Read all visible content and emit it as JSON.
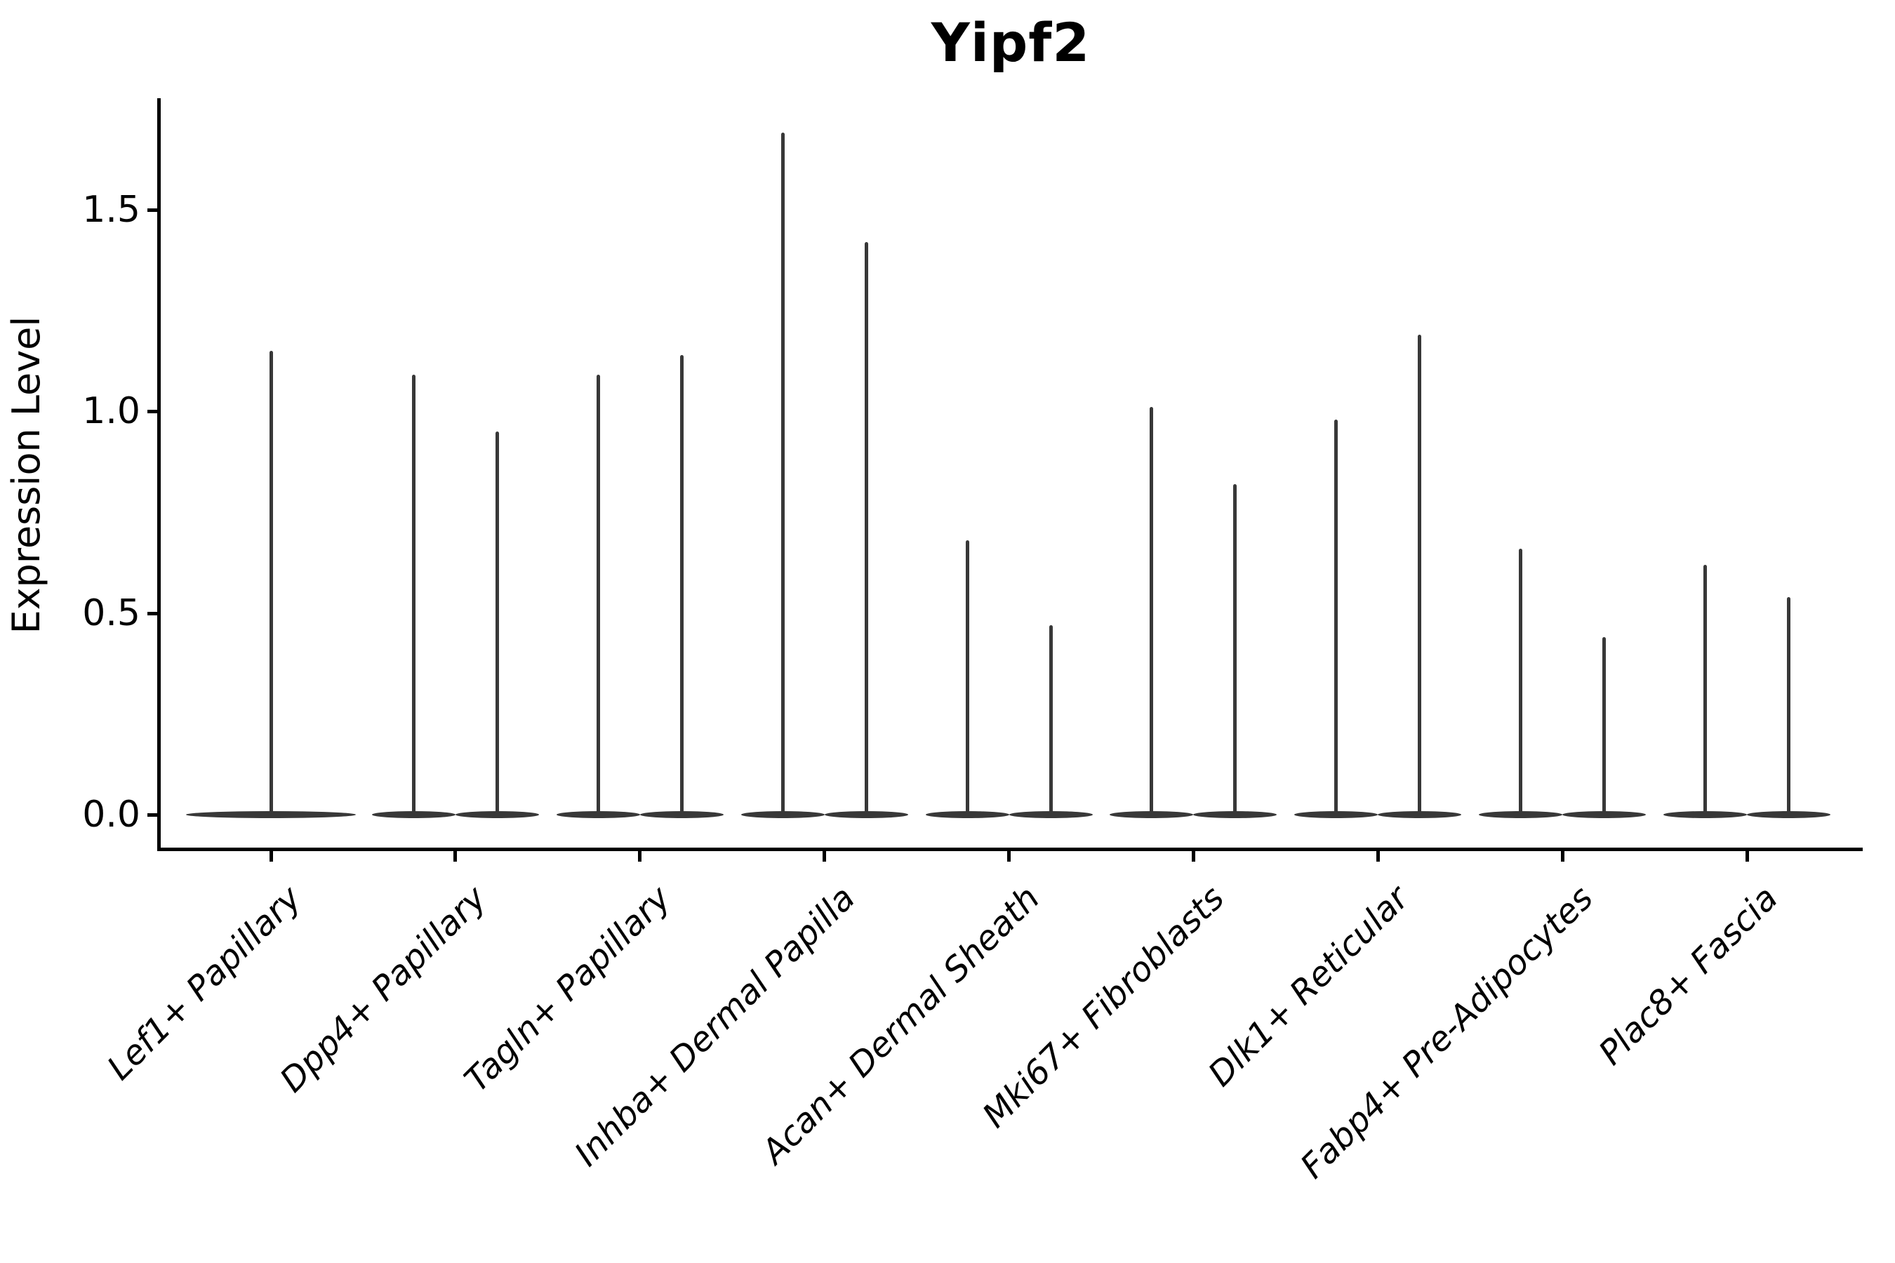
{
  "title": "Yipf2",
  "axes": {
    "ylabel": "Expression Level",
    "ytick_labels": [
      "0.0",
      "0.5",
      "1.0",
      "1.5"
    ],
    "xtick_labels": [
      "Lef1+ Papillary",
      "Dpp4+ Papillary",
      "Tagln+ Papillary",
      "Inhba+ Dermal Papilla",
      "Acan+ Dermal Sheath",
      "Mki67+ Fibroblasts",
      "Dlk1+ Reticular",
      "Fabp4+ Pre-Adipocytes",
      "Plac8+ Fascia"
    ]
  },
  "colors": {
    "background": "#ffffff",
    "axis": "#000000",
    "text": "#000000",
    "violin": "#383838"
  },
  "chart_data": {
    "type": "violin",
    "title": "Yipf2",
    "xlabel": "",
    "ylabel": "Expression Level",
    "yticks": [
      0.0,
      0.5,
      1.0,
      1.5
    ],
    "ylim": [
      -0.09,
      1.78
    ],
    "grid": false,
    "legend": "none",
    "categories": [
      "Lef1+ Papillary",
      "Dpp4+ Papillary",
      "Tagln+ Papillary",
      "Inhba+ Dermal Papilla",
      "Acan+ Dermal Sheath",
      "Mki67+ Fibroblasts",
      "Dlk1+ Reticular",
      "Fabp4+ Pre-Adipocytes",
      "Plac8+ Fascia"
    ],
    "series": [
      {
        "category": "Lef1+ Papillary",
        "violin_max_values": [
          1.15
        ]
      },
      {
        "category": "Dpp4+ Papillary",
        "violin_max_values": [
          1.09,
          0.95
        ]
      },
      {
        "category": "Tagln+ Papillary",
        "violin_max_values": [
          1.09,
          1.14
        ]
      },
      {
        "category": "Inhba+ Dermal Papilla",
        "violin_max_values": [
          1.69,
          1.42
        ]
      },
      {
        "category": "Acan+ Dermal Sheath",
        "violin_max_values": [
          0.68,
          0.47
        ]
      },
      {
        "category": "Mki67+ Fibroblasts",
        "violin_max_values": [
          1.01,
          0.82
        ]
      },
      {
        "category": "Dlk1+ Reticular",
        "violin_max_values": [
          0.98,
          1.19
        ]
      },
      {
        "category": "Fabp4+ Pre-Adipocytes",
        "violin_max_values": [
          0.66,
          0.44
        ]
      },
      {
        "category": "Plac8+ Fascia",
        "violin_max_values": [
          0.62,
          0.54
        ]
      }
    ],
    "shape_note": "Each violin's density mass sits at expression 0 (flat wide base) with a very thin spike rising to the listed maximum value."
  }
}
